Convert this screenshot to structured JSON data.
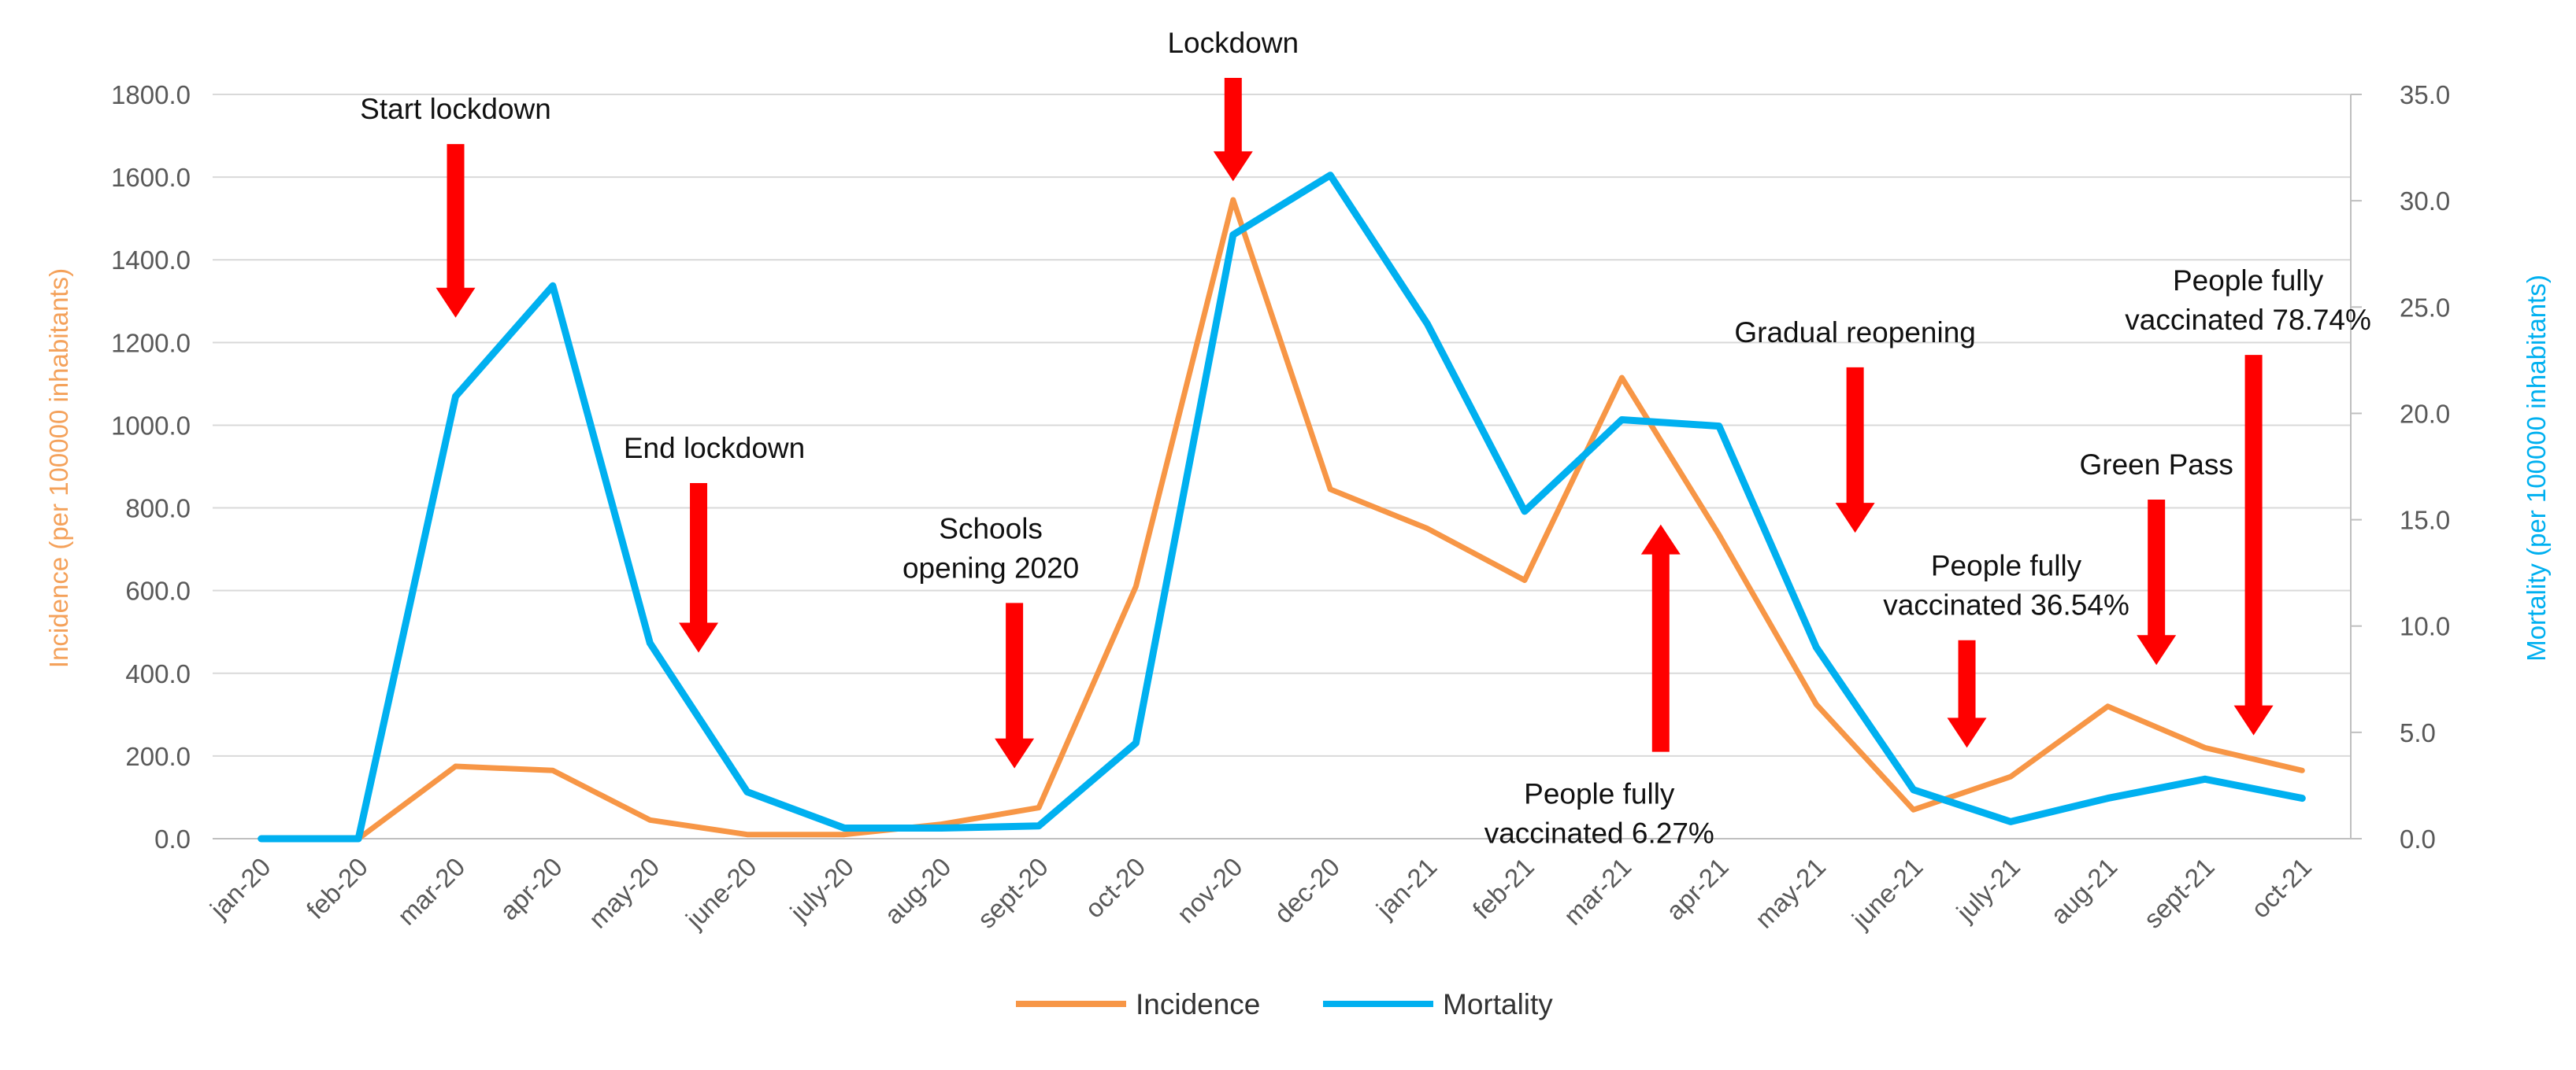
{
  "chart_data": {
    "type": "line",
    "title": "",
    "xlabel": "",
    "ylabel": "Incidence (per 100000 inhabitants)",
    "y2label": "Mortality (per 100000 inhabitants)",
    "ylim": [
      0,
      1800
    ],
    "y2lim": [
      0,
      35
    ],
    "grid": true,
    "legend_position": "bottom",
    "y_ticks": [
      "0.0",
      "200.0",
      "400.0",
      "600.0",
      "800.0",
      "1000.0",
      "1200.0",
      "1400.0",
      "1600.0",
      "1800.0"
    ],
    "y_tick_values": [
      0,
      200,
      400,
      600,
      800,
      1000,
      1200,
      1400,
      1600,
      1800
    ],
    "y2_ticks": [
      "0.0",
      "5.0",
      "10.0",
      "15.0",
      "20.0",
      "25.0",
      "30.0",
      "35.0"
    ],
    "y2_tick_values": [
      0,
      5,
      10,
      15,
      20,
      25,
      30,
      35
    ],
    "categories": [
      "jan-20",
      "feb-20",
      "mar-20",
      "apr-20",
      "may-20",
      "june-20",
      "july-20",
      "aug-20",
      "sept-20",
      "oct-20",
      "nov-20",
      "dec-20",
      "jan-21",
      "feb-21",
      "mar-21",
      "apr-21",
      "may-21",
      "june-21",
      "july-21",
      "aug-21",
      "sept-21",
      "oct-21"
    ],
    "series": [
      {
        "name": "Incidence",
        "axis": "left",
        "color": "#f79646",
        "values": [
          0,
          0,
          175,
          165,
          45,
          10,
          10,
          35,
          75,
          610,
          1545,
          845,
          750,
          625,
          1115,
          735,
          325,
          70,
          150,
          320,
          220,
          165
        ]
      },
      {
        "name": "Mortality",
        "axis": "right",
        "color": "#00b0f0",
        "values": [
          0,
          0,
          20.8,
          26,
          9.2,
          2.2,
          0.5,
          0.5,
          0.6,
          4.5,
          28.4,
          31.2,
          24.2,
          15.4,
          19.7,
          19.4,
          9,
          2.3,
          0.8,
          1.9,
          2.8,
          1.9
        ]
      }
    ],
    "annotations": [
      {
        "lines": [
          "Start lockdown"
        ],
        "month_index": 2,
        "direction": "down",
        "arrow_from": 1680,
        "arrow_to": 1260
      },
      {
        "lines": [
          "End lockdown"
        ],
        "month_index": 4.5,
        "direction": "down",
        "arrow_from": 860,
        "arrow_to": 450
      },
      {
        "lines": [
          "Schools",
          "opening 2020"
        ],
        "month_index": 7.75,
        "direction": "down",
        "arrow_from": 570,
        "arrow_to": 170
      },
      {
        "lines": [
          "Lockdown"
        ],
        "month_index": 10,
        "direction": "down",
        "arrow_from": 1840,
        "arrow_to": 1590
      },
      {
        "lines": [
          "People fully",
          "vaccinated 6.27%"
        ],
        "month_index": 14.4,
        "direction": "up",
        "arrow_from": 210,
        "arrow_to": 760
      },
      {
        "lines": [
          "Gradual reopening"
        ],
        "month_index": 16.4,
        "direction": "down",
        "arrow_from": 1140,
        "arrow_to": 740
      },
      {
        "lines": [
          "People fully",
          "vaccinated 36.54%"
        ],
        "month_index": 17.55,
        "direction": "down",
        "arrow_from": 480,
        "arrow_to": 220
      },
      {
        "lines": [
          "Green Pass"
        ],
        "month_index": 19.5,
        "direction": "down",
        "arrow_from": 820,
        "arrow_to": 420
      },
      {
        "lines": [
          "People fully",
          "vaccinated 78.74%"
        ],
        "month_index": 20.5,
        "direction": "down",
        "arrow_from": 1170,
        "arrow_to": 250
      }
    ],
    "arrow_color": "#ff0000"
  }
}
